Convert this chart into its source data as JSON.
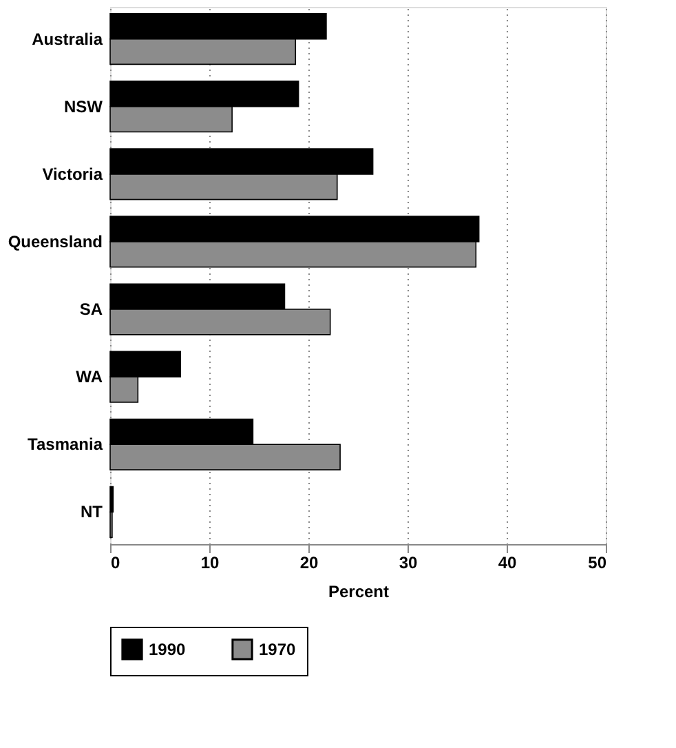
{
  "chart_data": {
    "type": "bar",
    "orientation": "horizontal",
    "xlabel": "Percent",
    "categories": [
      "Australia",
      "NSW",
      "Victoria",
      "Queensland",
      "SA",
      "WA",
      "Tasmania",
      "NT"
    ],
    "series": [
      {
        "name": "1990",
        "color": "#000000",
        "values": [
          21.8,
          19.0,
          26.5,
          37.2,
          17.6,
          7.1,
          14.4,
          0.3
        ]
      },
      {
        "name": "1970",
        "color": "#8c8c8c",
        "values": [
          18.7,
          12.3,
          22.9,
          36.9,
          22.2,
          2.8,
          23.2,
          0.2
        ]
      }
    ],
    "xlim": [
      0,
      50
    ],
    "xticks": [
      0,
      10,
      20,
      30,
      40,
      50
    ],
    "grid": "x",
    "legend": "bottom"
  }
}
